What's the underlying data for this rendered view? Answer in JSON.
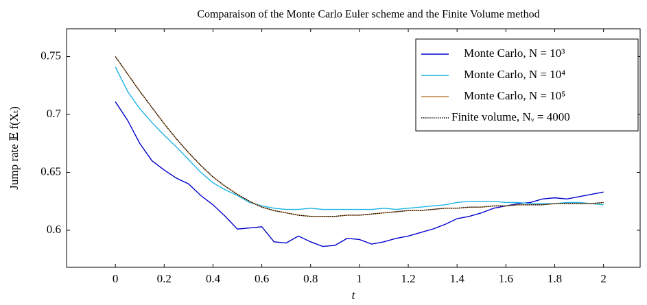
{
  "chart_data": {
    "type": "line",
    "title": "Comparaison of the Monte Carlo Euler scheme and the Finite Volume method",
    "xlabel": "t",
    "ylabel": "Jump rate 𝔼 f(Xₜ)",
    "x": [
      0,
      0.05,
      0.1,
      0.15,
      0.2,
      0.25,
      0.3,
      0.35,
      0.4,
      0.45,
      0.5,
      0.55,
      0.6,
      0.65,
      0.7,
      0.75,
      0.8,
      0.85,
      0.9,
      0.95,
      1,
      1.05,
      1.1,
      1.15,
      1.2,
      1.25,
      1.3,
      1.35,
      1.4,
      1.45,
      1.5,
      1.55,
      1.6,
      1.65,
      1.7,
      1.75,
      1.8,
      1.85,
      1.9,
      1.95,
      2
    ],
    "series": [
      {
        "name": "Monte Carlo, N = 10³",
        "color": "#0000cc",
        "dash": "solid",
        "values": [
          0.711,
          0.695,
          0.675,
          0.66,
          0.652,
          0.645,
          0.64,
          0.63,
          0.622,
          0.612,
          0.601,
          0.602,
          0.603,
          0.59,
          0.589,
          0.595,
          0.59,
          0.586,
          0.587,
          0.593,
          0.592,
          0.588,
          0.59,
          0.593,
          0.595,
          0.598,
          0.601,
          0.605,
          0.61,
          0.612,
          0.615,
          0.619,
          0.621,
          0.623,
          0.624,
          0.627,
          0.628,
          0.627,
          0.629,
          0.631,
          0.633
        ]
      },
      {
        "name": "Monte Carlo, N = 10⁴",
        "color": "#1ab3e6",
        "dash": "solid",
        "values": [
          0.741,
          0.72,
          0.705,
          0.693,
          0.682,
          0.672,
          0.661,
          0.65,
          0.641,
          0.635,
          0.63,
          0.624,
          0.621,
          0.619,
          0.618,
          0.618,
          0.619,
          0.618,
          0.618,
          0.618,
          0.618,
          0.618,
          0.619,
          0.618,
          0.619,
          0.62,
          0.621,
          0.622,
          0.624,
          0.625,
          0.625,
          0.625,
          0.624,
          0.624,
          0.623,
          0.623,
          0.623,
          0.624,
          0.624,
          0.623,
          0.622
        ]
      },
      {
        "name": "Monte Carlo, N = 10⁵",
        "color": "#bf8040",
        "dash": "solid",
        "values": [
          0.75,
          0.735,
          0.72,
          0.706,
          0.692,
          0.679,
          0.667,
          0.656,
          0.646,
          0.638,
          0.631,
          0.625,
          0.62,
          0.617,
          0.615,
          0.613,
          0.612,
          0.612,
          0.612,
          0.613,
          0.613,
          0.614,
          0.615,
          0.616,
          0.617,
          0.617,
          0.618,
          0.619,
          0.619,
          0.62,
          0.62,
          0.621,
          0.621,
          0.622,
          0.622,
          0.622,
          0.623,
          0.623,
          0.623,
          0.623,
          0.624
        ]
      },
      {
        "name": "Finite volume, Nᵥ = 4000",
        "color": "#000000",
        "dash": "dotted",
        "values": [
          0.75,
          0.735,
          0.72,
          0.706,
          0.692,
          0.679,
          0.667,
          0.656,
          0.646,
          0.638,
          0.631,
          0.625,
          0.62,
          0.617,
          0.615,
          0.613,
          0.612,
          0.612,
          0.612,
          0.613,
          0.613,
          0.614,
          0.615,
          0.616,
          0.617,
          0.617,
          0.618,
          0.619,
          0.619,
          0.62,
          0.62,
          0.621,
          0.621,
          0.622,
          0.622,
          0.622,
          0.623,
          0.623,
          0.623,
          0.623,
          0.624
        ]
      }
    ],
    "xlim": [
      -0.2,
      2.15
    ],
    "ylim": [
      0.568,
      0.774
    ],
    "xticks": [
      0,
      0.2,
      0.4,
      0.6,
      0.8,
      1,
      1.2,
      1.4,
      1.6,
      1.8,
      2
    ],
    "yticks": [
      0.6,
      0.65,
      0.7,
      0.75
    ],
    "grid": false,
    "legend": "upper right"
  }
}
